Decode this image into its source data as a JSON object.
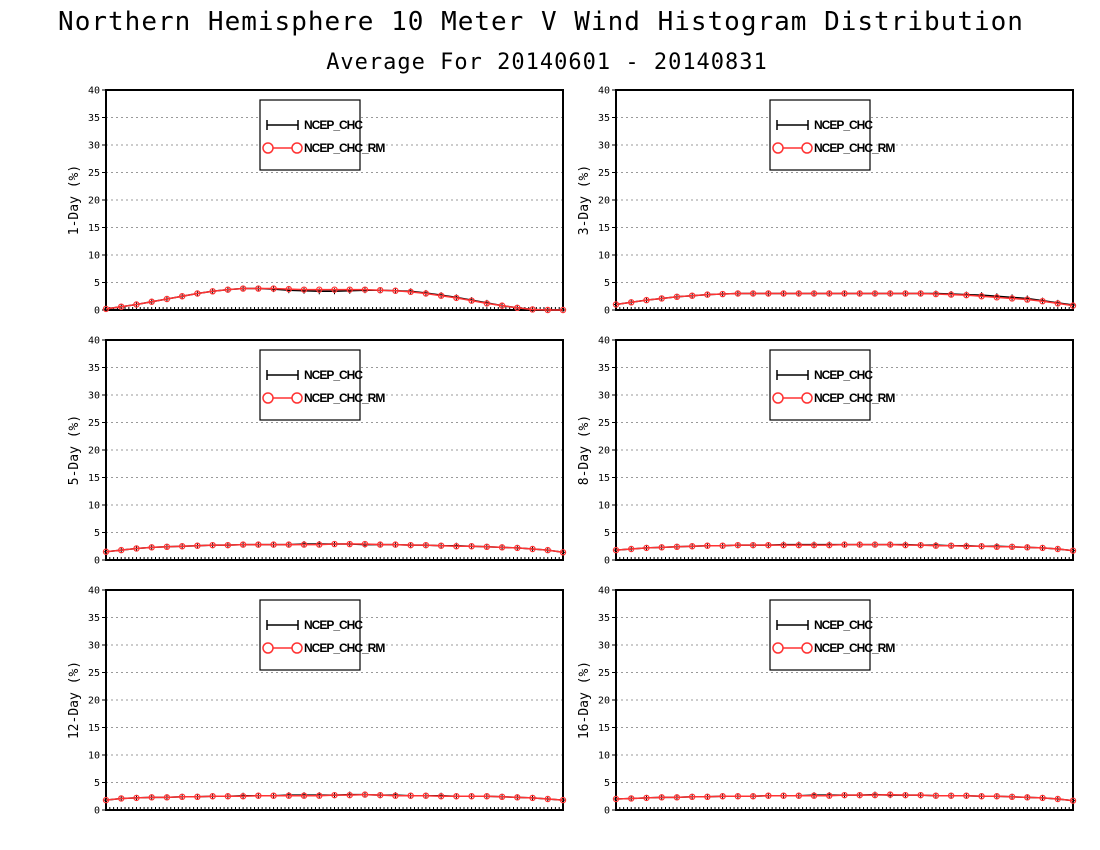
{
  "title": "Northern Hemisphere 10 Meter V Wind Histogram Distribution",
  "subtitle": "Average For 20140601 - 20140831",
  "colors": {
    "series1": "#000000",
    "series2": "#ff3333",
    "grid": "#999999"
  },
  "chart_data": [
    {
      "type": "line",
      "ylabel": "1-Day (%)",
      "ylim": [
        0,
        40
      ],
      "yticks": [
        "0",
        "5",
        "10",
        "15",
        "20",
        "25",
        "30",
        "35",
        "40"
      ],
      "grid": true,
      "legend_position": "top-left",
      "x": [
        0,
        1,
        2,
        3,
        4,
        5,
        6,
        7,
        8,
        9,
        10,
        11,
        12,
        13,
        14,
        15,
        16,
        17,
        18,
        19,
        20,
        21,
        22,
        23,
        24,
        25,
        26,
        27,
        28,
        29,
        30
      ],
      "series": [
        {
          "name": "NCEP_CHC",
          "marker": "plus",
          "values": [
            0.2,
            0.6,
            1.0,
            1.5,
            2.0,
            2.5,
            3.0,
            3.4,
            3.7,
            3.9,
            3.9,
            3.8,
            3.6,
            3.5,
            3.4,
            3.4,
            3.5,
            3.6,
            3.6,
            3.5,
            3.4,
            3.1,
            2.7,
            2.3,
            1.8,
            1.3,
            0.8,
            0.4,
            0.1,
            0.0,
            0.0
          ]
        },
        {
          "name": "NCEP_CHC_RM",
          "marker": "circle",
          "values": [
            0.2,
            0.6,
            1.0,
            1.5,
            2.0,
            2.5,
            3.0,
            3.4,
            3.7,
            3.9,
            3.9,
            3.9,
            3.8,
            3.7,
            3.7,
            3.7,
            3.7,
            3.7,
            3.6,
            3.5,
            3.3,
            3.0,
            2.6,
            2.2,
            1.7,
            1.2,
            0.8,
            0.4,
            0.1,
            0.0,
            0.0
          ]
        }
      ]
    },
    {
      "type": "line",
      "ylabel": "3-Day (%)",
      "ylim": [
        0,
        40
      ],
      "yticks": [
        "0",
        "5",
        "10",
        "15",
        "20",
        "25",
        "30",
        "35",
        "40"
      ],
      "grid": true,
      "legend_position": "top-left",
      "x": [
        0,
        1,
        2,
        3,
        4,
        5,
        6,
        7,
        8,
        9,
        10,
        11,
        12,
        13,
        14,
        15,
        16,
        17,
        18,
        19,
        20,
        21,
        22,
        23,
        24,
        25,
        26,
        27,
        28,
        29,
        30
      ],
      "series": [
        {
          "name": "NCEP_CHC",
          "marker": "plus",
          "values": [
            1.0,
            1.4,
            1.8,
            2.1,
            2.4,
            2.6,
            2.8,
            2.9,
            3.0,
            3.0,
            3.0,
            3.0,
            3.0,
            3.0,
            3.0,
            3.0,
            3.0,
            3.0,
            3.0,
            3.0,
            3.0,
            3.0,
            2.9,
            2.8,
            2.7,
            2.5,
            2.3,
            2.1,
            1.7,
            1.3,
            0.9
          ]
        },
        {
          "name": "NCEP_CHC_RM",
          "marker": "circle",
          "values": [
            1.0,
            1.4,
            1.8,
            2.1,
            2.4,
            2.6,
            2.8,
            2.9,
            3.0,
            3.0,
            3.0,
            3.0,
            3.0,
            3.0,
            3.0,
            3.0,
            3.0,
            3.0,
            3.0,
            3.0,
            3.0,
            2.9,
            2.8,
            2.7,
            2.5,
            2.3,
            2.1,
            1.9,
            1.6,
            1.2,
            0.8
          ]
        }
      ]
    },
    {
      "type": "line",
      "ylabel": "5-Day (%)",
      "ylim": [
        0,
        40
      ],
      "yticks": [
        "0",
        "5",
        "10",
        "15",
        "20",
        "25",
        "30",
        "35",
        "40"
      ],
      "grid": true,
      "legend_position": "top-left",
      "x": [
        0,
        1,
        2,
        3,
        4,
        5,
        6,
        7,
        8,
        9,
        10,
        11,
        12,
        13,
        14,
        15,
        16,
        17,
        18,
        19,
        20,
        21,
        22,
        23,
        24,
        25,
        26,
        27,
        28,
        29,
        30
      ],
      "series": [
        {
          "name": "NCEP_CHC",
          "marker": "plus",
          "values": [
            1.5,
            1.8,
            2.1,
            2.3,
            2.4,
            2.5,
            2.6,
            2.7,
            2.7,
            2.8,
            2.8,
            2.8,
            2.8,
            2.9,
            2.9,
            2.9,
            2.9,
            2.8,
            2.8,
            2.8,
            2.7,
            2.7,
            2.6,
            2.6,
            2.5,
            2.4,
            2.3,
            2.2,
            2.0,
            1.8,
            1.4
          ]
        },
        {
          "name": "NCEP_CHC_RM",
          "marker": "circle",
          "values": [
            1.5,
            1.8,
            2.1,
            2.3,
            2.4,
            2.5,
            2.6,
            2.7,
            2.7,
            2.8,
            2.8,
            2.8,
            2.8,
            2.8,
            2.8,
            2.9,
            2.9,
            2.9,
            2.8,
            2.8,
            2.7,
            2.7,
            2.6,
            2.5,
            2.5,
            2.4,
            2.3,
            2.2,
            2.0,
            1.8,
            1.4
          ]
        }
      ]
    },
    {
      "type": "line",
      "ylabel": "8-Day (%)",
      "ylim": [
        0,
        40
      ],
      "yticks": [
        "0",
        "5",
        "10",
        "15",
        "20",
        "25",
        "30",
        "35",
        "40"
      ],
      "grid": true,
      "legend_position": "top-left",
      "x": [
        0,
        1,
        2,
        3,
        4,
        5,
        6,
        7,
        8,
        9,
        10,
        11,
        12,
        13,
        14,
        15,
        16,
        17,
        18,
        19,
        20,
        21,
        22,
        23,
        24,
        25,
        26,
        27,
        28,
        29,
        30
      ],
      "series": [
        {
          "name": "NCEP_CHC",
          "marker": "plus",
          "values": [
            1.8,
            2.0,
            2.2,
            2.3,
            2.4,
            2.5,
            2.6,
            2.6,
            2.7,
            2.7,
            2.7,
            2.8,
            2.8,
            2.8,
            2.8,
            2.8,
            2.8,
            2.8,
            2.8,
            2.8,
            2.7,
            2.7,
            2.6,
            2.6,
            2.5,
            2.5,
            2.4,
            2.3,
            2.2,
            2.0,
            1.7
          ]
        },
        {
          "name": "NCEP_CHC_RM",
          "marker": "circle",
          "values": [
            1.8,
            2.0,
            2.2,
            2.3,
            2.4,
            2.5,
            2.6,
            2.6,
            2.7,
            2.7,
            2.7,
            2.7,
            2.7,
            2.7,
            2.7,
            2.8,
            2.8,
            2.8,
            2.8,
            2.7,
            2.7,
            2.6,
            2.6,
            2.5,
            2.5,
            2.4,
            2.4,
            2.3,
            2.2,
            2.0,
            1.7
          ]
        }
      ]
    },
    {
      "type": "line",
      "ylabel": "12-Day (%)",
      "ylim": [
        0,
        40
      ],
      "yticks": [
        "0",
        "5",
        "10",
        "15",
        "20",
        "25",
        "30",
        "35",
        "40"
      ],
      "grid": true,
      "legend_position": "top-left",
      "x": [
        0,
        1,
        2,
        3,
        4,
        5,
        6,
        7,
        8,
        9,
        10,
        11,
        12,
        13,
        14,
        15,
        16,
        17,
        18,
        19,
        20,
        21,
        22,
        23,
        24,
        25,
        26,
        27,
        28,
        29,
        30
      ],
      "series": [
        {
          "name": "NCEP_CHC",
          "marker": "plus",
          "values": [
            1.8,
            2.1,
            2.2,
            2.3,
            2.3,
            2.4,
            2.4,
            2.5,
            2.5,
            2.6,
            2.6,
            2.6,
            2.7,
            2.7,
            2.7,
            2.7,
            2.8,
            2.8,
            2.7,
            2.7,
            2.6,
            2.6,
            2.6,
            2.5,
            2.5,
            2.5,
            2.4,
            2.3,
            2.2,
            2.0,
            1.8
          ]
        },
        {
          "name": "NCEP_CHC_RM",
          "marker": "circle",
          "values": [
            1.8,
            2.1,
            2.2,
            2.3,
            2.3,
            2.4,
            2.4,
            2.5,
            2.5,
            2.5,
            2.6,
            2.6,
            2.6,
            2.6,
            2.6,
            2.7,
            2.7,
            2.8,
            2.7,
            2.6,
            2.6,
            2.6,
            2.5,
            2.5,
            2.5,
            2.5,
            2.4,
            2.3,
            2.2,
            2.0,
            1.8
          ]
        }
      ]
    },
    {
      "type": "line",
      "ylabel": "16-Day (%)",
      "ylim": [
        0,
        40
      ],
      "yticks": [
        "0",
        "5",
        "10",
        "15",
        "20",
        "25",
        "30",
        "35",
        "40"
      ],
      "grid": true,
      "legend_position": "top-left",
      "x": [
        0,
        1,
        2,
        3,
        4,
        5,
        6,
        7,
        8,
        9,
        10,
        11,
        12,
        13,
        14,
        15,
        16,
        17,
        18,
        19,
        20,
        21,
        22,
        23,
        24,
        25,
        26,
        27,
        28,
        29,
        30
      ],
      "series": [
        {
          "name": "NCEP_CHC",
          "marker": "plus",
          "values": [
            2.0,
            2.1,
            2.2,
            2.3,
            2.3,
            2.4,
            2.4,
            2.5,
            2.5,
            2.5,
            2.6,
            2.6,
            2.6,
            2.7,
            2.7,
            2.7,
            2.7,
            2.8,
            2.7,
            2.7,
            2.7,
            2.6,
            2.6,
            2.6,
            2.5,
            2.5,
            2.4,
            2.3,
            2.2,
            2.0,
            1.7
          ]
        },
        {
          "name": "NCEP_CHC_RM",
          "marker": "circle",
          "values": [
            2.0,
            2.1,
            2.2,
            2.3,
            2.3,
            2.4,
            2.4,
            2.5,
            2.5,
            2.5,
            2.6,
            2.6,
            2.6,
            2.6,
            2.6,
            2.7,
            2.7,
            2.7,
            2.8,
            2.7,
            2.7,
            2.6,
            2.6,
            2.6,
            2.5,
            2.5,
            2.4,
            2.3,
            2.2,
            2.0,
            1.7
          ]
        }
      ]
    }
  ]
}
